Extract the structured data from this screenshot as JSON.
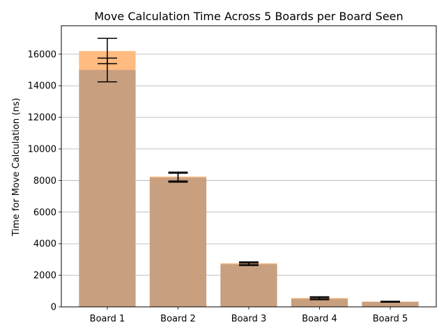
{
  "chart_data": {
    "type": "bar",
    "title": "Move Calculation Time Across 5 Boards per Board Seen",
    "xlabel": "",
    "ylabel": "Time for Move Calculation (ns)",
    "categories": [
      "Board 1",
      "Board 2",
      "Board 3",
      "Board 4",
      "Board 5"
    ],
    "ylim": [
      0,
      17800
    ],
    "yticks": [
      0,
      2000,
      4000,
      6000,
      8000,
      10000,
      12000,
      14000,
      16000
    ],
    "grid": "y",
    "legend": "none",
    "series": [
      {
        "values": [
          16200,
          8250,
          2760,
          560,
          330
        ],
        "error": [
          800,
          280,
          90,
          80,
          25
        ],
        "color": "#ffbb80"
      },
      {
        "values": [
          15000,
          8180,
          2700,
          510,
          320
        ],
        "error": [
          750,
          280,
          80,
          60,
          20
        ],
        "color": "#c8a080"
      }
    ]
  }
}
